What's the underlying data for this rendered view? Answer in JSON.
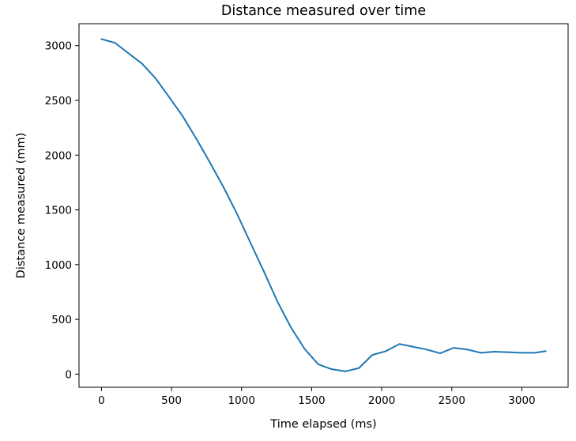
{
  "chart_data": {
    "type": "line",
    "title": "Distance measured over time",
    "xlabel": "Time elapsed (ms)",
    "ylabel": "Distance measured (mm)",
    "xlim": [
      -160,
      3330
    ],
    "ylim": [
      -120,
      3200
    ],
    "xticks": [
      0,
      500,
      1000,
      1500,
      2000,
      2500,
      3000
    ],
    "yticks": [
      0,
      500,
      1000,
      1500,
      2000,
      2500,
      3000
    ],
    "grid": false,
    "color": "#1f77b4",
    "series": [
      {
        "x": [
          0,
          97,
          193,
          290,
          387,
          483,
          580,
          677,
          773,
          870,
          967,
          1063,
          1160,
          1257,
          1353,
          1450,
          1547,
          1643,
          1740,
          1837,
          1933,
          2030,
          2127,
          2223,
          2320,
          2417,
          2513,
          2610,
          2707,
          2803,
          2900,
          2997,
          3093,
          3170
        ],
        "y": [
          3060,
          3025,
          2930,
          2835,
          2700,
          2530,
          2355,
          2150,
          1935,
          1710,
          1465,
          1200,
          935,
          660,
          425,
          230,
          90,
          45,
          25,
          55,
          175,
          210,
          275,
          250,
          225,
          190,
          240,
          225,
          195,
          205,
          200,
          195,
          195,
          210
        ]
      }
    ]
  }
}
